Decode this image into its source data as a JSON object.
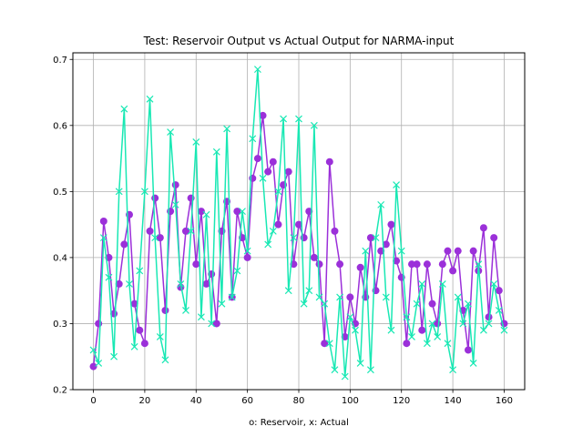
{
  "chart_data": {
    "type": "line",
    "title": "Test: Reservoir Output vs Actual Output for NARMA-input",
    "xlabel": "o: Reservoir, x: Actual",
    "ylabel": "",
    "xlim": [
      -8,
      168
    ],
    "ylim": [
      0.2,
      0.71
    ],
    "xticks": [
      0,
      20,
      40,
      60,
      80,
      100,
      120,
      140,
      160
    ],
    "yticks": [
      0.2,
      0.3,
      0.4,
      0.5,
      0.6,
      0.7
    ],
    "grid": true,
    "series": [
      {
        "name": "Reservoir",
        "marker": "o",
        "color": "#9b30d9",
        "x": [
          0,
          2,
          4,
          6,
          8,
          10,
          12,
          14,
          16,
          18,
          20,
          22,
          24,
          26,
          28,
          30,
          32,
          34,
          36,
          38,
          40,
          42,
          44,
          46,
          48,
          50,
          52,
          54,
          56,
          58,
          60,
          62,
          64,
          66,
          68,
          70,
          72,
          74,
          76,
          78,
          80,
          82,
          84,
          86,
          88,
          90,
          92,
          94,
          96,
          98,
          100,
          102,
          104,
          106,
          108,
          110,
          112,
          114,
          116,
          118,
          120,
          122,
          124,
          126,
          128,
          130,
          132,
          134,
          136,
          138,
          140,
          142,
          144,
          146,
          148,
          150,
          152,
          154,
          156,
          158,
          160
        ],
        "y": [
          0.235,
          0.3,
          0.455,
          0.4,
          0.315,
          0.36,
          0.42,
          0.465,
          0.33,
          0.29,
          0.27,
          0.44,
          0.49,
          0.43,
          0.32,
          0.47,
          0.51,
          0.355,
          0.44,
          0.49,
          0.39,
          0.47,
          0.36,
          0.375,
          0.3,
          0.44,
          0.485,
          0.34,
          0.47,
          0.43,
          0.4,
          0.52,
          0.55,
          0.615,
          0.53,
          0.545,
          0.45,
          0.51,
          0.53,
          0.39,
          0.45,
          0.43,
          0.47,
          0.4,
          0.39,
          0.27,
          0.545,
          0.44,
          0.39,
          0.28,
          0.34,
          0.3,
          0.385,
          0.34,
          0.43,
          0.35,
          0.41,
          0.42,
          0.45,
          0.395,
          0.37,
          0.27,
          0.39,
          0.39,
          0.29,
          0.39,
          0.33,
          0.3,
          0.39,
          0.41,
          0.38,
          0.41,
          0.32,
          0.26,
          0.41,
          0.38,
          0.445,
          0.31,
          0.43,
          0.35,
          0.3
        ]
      },
      {
        "name": "Actual",
        "marker": "x",
        "color": "#19e8b4",
        "x": [
          0,
          2,
          4,
          6,
          8,
          10,
          12,
          14,
          16,
          18,
          20,
          22,
          24,
          26,
          28,
          30,
          32,
          34,
          36,
          38,
          40,
          42,
          44,
          46,
          48,
          50,
          52,
          54,
          56,
          58,
          60,
          62,
          64,
          66,
          68,
          70,
          72,
          74,
          76,
          78,
          80,
          82,
          84,
          86,
          88,
          90,
          92,
          94,
          96,
          98,
          100,
          102,
          104,
          106,
          108,
          110,
          112,
          114,
          116,
          118,
          120,
          122,
          124,
          126,
          128,
          130,
          132,
          134,
          136,
          138,
          140,
          142,
          144,
          146,
          148,
          150,
          152,
          154,
          156,
          158,
          160
        ],
        "y": [
          0.26,
          0.24,
          0.43,
          0.37,
          0.25,
          0.5,
          0.625,
          0.36,
          0.265,
          0.38,
          0.5,
          0.64,
          0.43,
          0.28,
          0.245,
          0.59,
          0.48,
          0.36,
          0.32,
          0.44,
          0.575,
          0.31,
          0.465,
          0.3,
          0.56,
          0.33,
          0.595,
          0.34,
          0.38,
          0.47,
          0.41,
          0.58,
          0.685,
          0.52,
          0.42,
          0.44,
          0.5,
          0.61,
          0.35,
          0.43,
          0.61,
          0.33,
          0.35,
          0.6,
          0.34,
          0.33,
          0.27,
          0.23,
          0.34,
          0.22,
          0.31,
          0.29,
          0.24,
          0.41,
          0.23,
          0.43,
          0.48,
          0.34,
          0.29,
          0.51,
          0.41,
          0.31,
          0.28,
          0.33,
          0.36,
          0.27,
          0.3,
          0.28,
          0.36,
          0.27,
          0.23,
          0.34,
          0.3,
          0.33,
          0.24,
          0.39,
          0.29,
          0.3,
          0.36,
          0.32,
          0.29
        ]
      }
    ]
  }
}
